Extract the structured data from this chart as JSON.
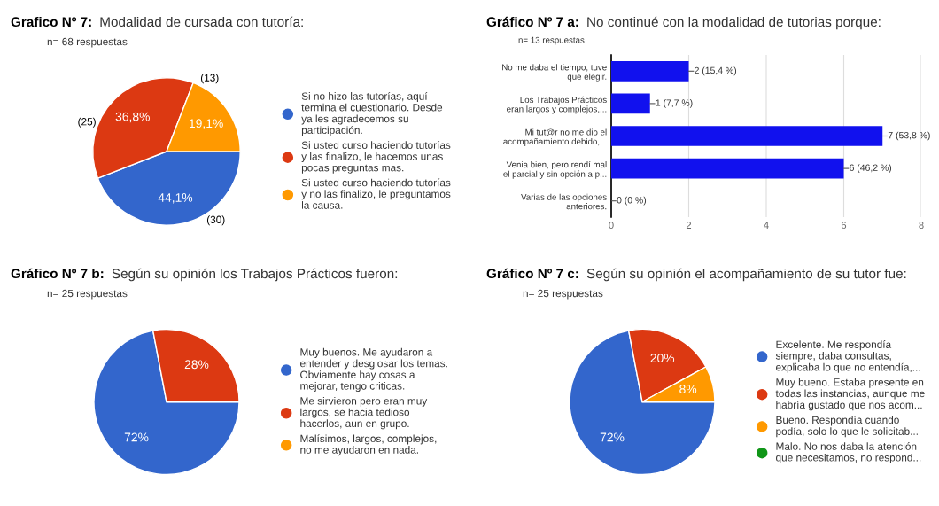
{
  "chart_data": [
    {
      "type": "pie",
      "title": "Grafico Nº 7:",
      "subtitle": "Modalidad de cursada con tutoría:",
      "annotations": [
        "n= 68 respuestas",
        "(30)",
        "(25)",
        "(13)"
      ],
      "categories": [
        "Si no hizo las tutorías, aquí\ntermina el cuestionario. Desde\nya les agradecemos su\nparticipación.",
        "Si usted curso haciendo tutorías\ny las finalizo, le hacemos unas\npocas preguntas mas.",
        "Si usted curso haciendo tutorías\ny no las finalizo, le preguntamos\nla causa."
      ],
      "values": [
        44.1,
        36.8,
        19.1
      ],
      "value_labels": [
        "44,1%",
        "36,8%",
        "19,1%"
      ],
      "colors": [
        "#3366cc",
        "#dc3912",
        "#ff9900"
      ],
      "legend": "right"
    },
    {
      "type": "bar",
      "orientation": "horizontal",
      "title": "Gráfico Nº 7 a:",
      "subtitle": "No continué con la modalidad de tutorias porque:",
      "annotations": [
        "n= 13 respuestas"
      ],
      "categories": [
        "No me daba el tiempo, tuve\nque elegir.",
        "Los Trabajos Prácticos\neran largos y complejos,...",
        "Mi tut@r no me dio el\nacompañamiento debido,...",
        "Venia bien, pero rendí mal\nel parcial y sin opción a p...",
        "Varias de las opciones\nanteriores."
      ],
      "values": [
        2,
        1,
        7,
        6,
        0
      ],
      "value_labels": [
        "2 (15,4 %)",
        "1 (7,7 %)",
        "7 (53,8 %)",
        "6 (46,2 %)",
        "0 (0 %)"
      ],
      "color": "#1111ee",
      "xlim": [
        0,
        8
      ],
      "xticks": [
        0,
        2,
        4,
        6,
        8
      ],
      "grid": "x"
    },
    {
      "type": "pie",
      "title": "Gráfico Nº 7 b:",
      "subtitle": "Según su opinión los Trabajos Prácticos fueron:",
      "annotations": [
        "n= 25 respuestas"
      ],
      "categories": [
        "Muy buenos. Me ayudaron a\nentender y desglosar los temas.\nObviamente hay cosas a\nmejorar, tengo criticas.",
        "Me sirvieron pero eran muy\nlargos, se hacia tedioso\nhacerlos, aun en grupo.",
        "Malísimos, largos, complejos,\nno me ayudaron en nada."
      ],
      "values": [
        72,
        28,
        0
      ],
      "value_labels": [
        "72%",
        "28%",
        null
      ],
      "colors": [
        "#3366cc",
        "#dc3912",
        "#ff9900"
      ],
      "legend": "right"
    },
    {
      "type": "pie",
      "title": "Gráfico Nº 7 c:",
      "subtitle": "Según su opinión el acompañamiento de su tutor fue:",
      "annotations": [
        "n= 25 respuestas"
      ],
      "categories": [
        "Excelente. Me respondía\nsiempre, daba consultas,\nexplicaba lo que no entendía,...",
        "Muy bueno. Estaba presente en\ntodas las instancias, aunque me\nhabría gustado que nos acom...",
        "Bueno. Respondía cuando\npodía, solo lo que le solicitab...",
        "Malo. No nos daba la atención\nque necesitamos, no respond..."
      ],
      "values": [
        72,
        20,
        8,
        0
      ],
      "value_labels": [
        "72%",
        "20%",
        "8%",
        null
      ],
      "colors": [
        "#3366cc",
        "#dc3912",
        "#ff9900",
        "#109618"
      ],
      "legend": "right"
    }
  ]
}
